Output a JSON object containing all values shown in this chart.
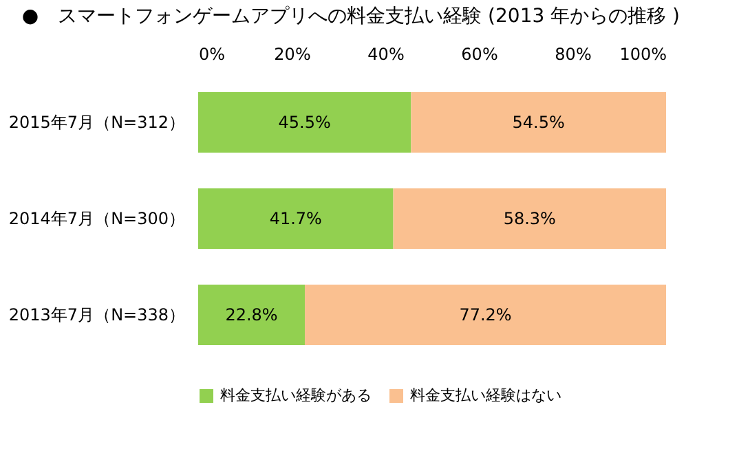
{
  "chart_data": {
    "type": "bar",
    "orientation": "horizontal",
    "stacked": true,
    "title": "●　スマートフォンゲームアプリへの料金支払い経験 (2013 年からの推移 )",
    "categories": [
      "2015年7月（N=312）",
      "2014年7月（N=300）",
      "2013年7月（N=338）"
    ],
    "series": [
      {
        "name": "料金支払い経験がある",
        "color": "#92d050",
        "values": [
          45.5,
          41.7,
          22.8
        ],
        "value_labels": [
          "45.5%",
          "41.7%",
          "22.8%"
        ]
      },
      {
        "name": "料金支払い経験はない",
        "color": "#fac090",
        "values": [
          54.5,
          58.3,
          77.2
        ],
        "value_labels": [
          "54.5%",
          "58.3%",
          "77.2%"
        ]
      }
    ],
    "xlim": [
      0,
      100
    ],
    "xticks": [
      {
        "value": 0,
        "label": "0%"
      },
      {
        "value": 20,
        "label": "20%"
      },
      {
        "value": 40,
        "label": "40%"
      },
      {
        "value": 60,
        "label": "60%"
      },
      {
        "value": 80,
        "label": "80%"
      },
      {
        "value": 100,
        "label": "100%"
      }
    ],
    "grid": false,
    "legend": "bottom"
  }
}
